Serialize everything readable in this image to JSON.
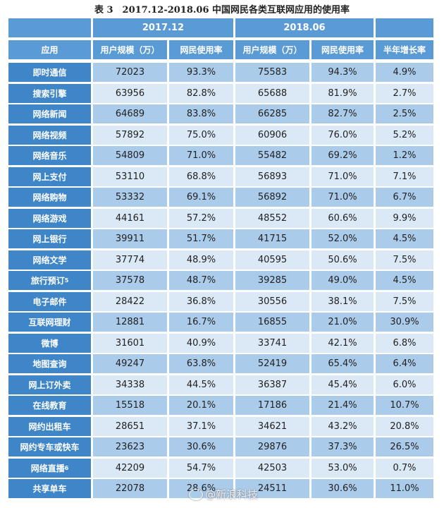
{
  "title": "表 3　2017.12-2018.06 中国网民各类互联网应用的使用率",
  "header": {
    "period1": "2017.12",
    "period2": "2018.06",
    "blank": "",
    "columns": [
      "应用",
      "用户规模（万）",
      "网民使用率",
      "用户规模（万）",
      "网民使用率",
      "半年增长率"
    ]
  },
  "rows": [
    {
      "app": "即时通信",
      "sup": "",
      "u1": "72023",
      "r1": "93.3%",
      "u2": "75583",
      "r2": "94.3%",
      "g": "4.9%"
    },
    {
      "app": "搜索引擎",
      "sup": "",
      "u1": "63956",
      "r1": "82.8%",
      "u2": "65688",
      "r2": "81.9%",
      "g": "2.7%"
    },
    {
      "app": "网络新闻",
      "sup": "",
      "u1": "64689",
      "r1": "83.8%",
      "u2": "66285",
      "r2": "82.7%",
      "g": "2.5%"
    },
    {
      "app": "网络视频",
      "sup": "",
      "u1": "57892",
      "r1": "75.0%",
      "u2": "60906",
      "r2": "76.0%",
      "g": "5.2%"
    },
    {
      "app": "网络音乐",
      "sup": "",
      "u1": "54809",
      "r1": "71.0%",
      "u2": "55482",
      "r2": "69.2%",
      "g": "1.2%"
    },
    {
      "app": "网上支付",
      "sup": "",
      "u1": "53110",
      "r1": "68.8%",
      "u2": "56893",
      "r2": "71.0%",
      "g": "7.1%"
    },
    {
      "app": "网络购物",
      "sup": "",
      "u1": "53332",
      "r1": "69.1%",
      "u2": "56892",
      "r2": "71.0%",
      "g": "6.7%"
    },
    {
      "app": "网络游戏",
      "sup": "",
      "u1": "44161",
      "r1": "57.2%",
      "u2": "48552",
      "r2": "60.6%",
      "g": "9.9%"
    },
    {
      "app": "网上银行",
      "sup": "",
      "u1": "39911",
      "r1": "51.7%",
      "u2": "41715",
      "r2": "52.0%",
      "g": "4.5%"
    },
    {
      "app": "网络文学",
      "sup": "",
      "u1": "37774",
      "r1": "48.9%",
      "u2": "40595",
      "r2": "50.6%",
      "g": "7.5%"
    },
    {
      "app": "旅行预订",
      "sup": "5",
      "u1": "37578",
      "r1": "48.7%",
      "u2": "39285",
      "r2": "49.0%",
      "g": "4.5%"
    },
    {
      "app": "电子邮件",
      "sup": "",
      "u1": "28422",
      "r1": "36.8%",
      "u2": "30556",
      "r2": "38.1%",
      "g": "7.5%"
    },
    {
      "app": "互联网理财",
      "sup": "",
      "u1": "12881",
      "r1": "16.7%",
      "u2": "16855",
      "r2": "21.0%",
      "g": "30.9%"
    },
    {
      "app": "微博",
      "sup": "",
      "u1": "31601",
      "r1": "40.9%",
      "u2": "33741",
      "r2": "42.1%",
      "g": "6.8%"
    },
    {
      "app": "地图查询",
      "sup": "",
      "u1": "49247",
      "r1": "63.8%",
      "u2": "52419",
      "r2": "65.4%",
      "g": "6.4%"
    },
    {
      "app": "网上订外卖",
      "sup": "",
      "u1": "34338",
      "r1": "44.5%",
      "u2": "36387",
      "r2": "45.4%",
      "g": "6.0%"
    },
    {
      "app": "在线教育",
      "sup": "",
      "u1": "15518",
      "r1": "20.1%",
      "u2": "17186",
      "r2": "21.4%",
      "g": "10.7%"
    },
    {
      "app": "网约出租车",
      "sup": "",
      "u1": "28651",
      "r1": "37.1%",
      "u2": "34621",
      "r2": "43.2%",
      "g": "20.8%"
    },
    {
      "app": "网约专车或快车",
      "sup": "",
      "u1": "23623",
      "r1": "30.6%",
      "u2": "29876",
      "r2": "37.3%",
      "g": "26.5%"
    },
    {
      "app": "网络直播",
      "sup": "6",
      "u1": "42209",
      "r1": "54.7%",
      "u2": "42503",
      "r2": "53.0%",
      "g": "0.7%"
    },
    {
      "app": "共享单车",
      "sup": "",
      "u1": "22078",
      "r1": "28.6%",
      "u2": "24511",
      "r2": "30.6%",
      "g": "11.0%"
    }
  ],
  "watermark": {
    "text": "@新浪科技",
    "icon": "weibo-logo-icon"
  },
  "colors": {
    "header": "#5b9bd5",
    "app_column": "#3f86c8",
    "row_dark": "#abcbea",
    "row_light": "#dbe8f5"
  }
}
